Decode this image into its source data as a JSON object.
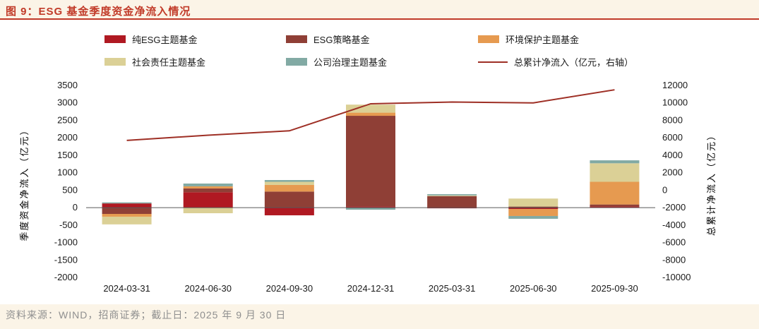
{
  "page": {
    "background": "#fbf4e7",
    "panel_background": "#ffffff"
  },
  "header": {
    "title": "图 9：ESG 基金季度资金净流入情况",
    "accent_color": "#c13a28"
  },
  "footer": {
    "source_text": "资料来源：WIND，招商证券；截止日：2025 年 9 月 30 日"
  },
  "legend": [
    {
      "label": "纯ESG主题基金",
      "color": "#b01922",
      "type": "box"
    },
    {
      "label": "ESG策略基金",
      "color": "#8f3f36",
      "type": "box"
    },
    {
      "label": "环境保护主题基金",
      "color": "#e69a50",
      "type": "box"
    },
    {
      "label": "社会责任主题基金",
      "color": "#dbd096",
      "type": "box"
    },
    {
      "label": "公司治理主题基金",
      "color": "#82aaa4",
      "type": "box"
    },
    {
      "label": "总累计净流入（亿元，右轴）",
      "color": "#9e2f25",
      "type": "line"
    }
  ],
  "chart_data": {
    "type": "combo_stacked_bar_line",
    "title": "ESG 基金季度资金净流入情况",
    "categories": [
      "2024-03-31",
      "2024-06-30",
      "2024-09-30",
      "2024-12-31",
      "2025-03-31",
      "2025-06-30",
      "2025-09-30"
    ],
    "bar_series": [
      {
        "name": "纯ESG主题基金",
        "color": "#b01922",
        "values": [
          120,
          440,
          -220,
          30,
          -20,
          -40,
          30
        ]
      },
      {
        "name": "ESG策略基金",
        "color": "#8f3f36",
        "values": [
          -180,
          110,
          460,
          2600,
          330,
          30,
          60
        ]
      },
      {
        "name": "环境保护主题基金",
        "color": "#e69a50",
        "values": [
          -80,
          60,
          190,
          90,
          0,
          -200,
          650
        ]
      },
      {
        "name": "社会责任主题基金",
        "color": "#dbd096",
        "values": [
          -220,
          -160,
          90,
          230,
          20,
          230,
          530
        ]
      },
      {
        "name": "公司治理主题基金",
        "color": "#82aaa4",
        "values": [
          30,
          80,
          50,
          -60,
          35,
          -80,
          85
        ]
      }
    ],
    "line_series": {
      "name": "总累计净流入（亿元，右轴）",
      "color": "#9e2f25",
      "axis": "right",
      "values": [
        5700,
        6300,
        6800,
        9900,
        10100,
        10000,
        11500
      ]
    },
    "left_axis": {
      "title": "季度资金净流入（亿元）",
      "min": -2000,
      "max": 3500,
      "ticks": [
        3500,
        3000,
        2500,
        2000,
        1500,
        1000,
        500,
        0,
        -500,
        -1000,
        -1500,
        -2000
      ]
    },
    "right_axis": {
      "title": "总累计净流入（亿元）",
      "min": -10000,
      "max": 12000,
      "ticks": [
        12000,
        10000,
        8000,
        6000,
        4000,
        2000,
        0,
        -2000,
        -4000,
        -6000,
        -8000,
        -10000
      ]
    },
    "grid": false,
    "legend_position": "top"
  }
}
